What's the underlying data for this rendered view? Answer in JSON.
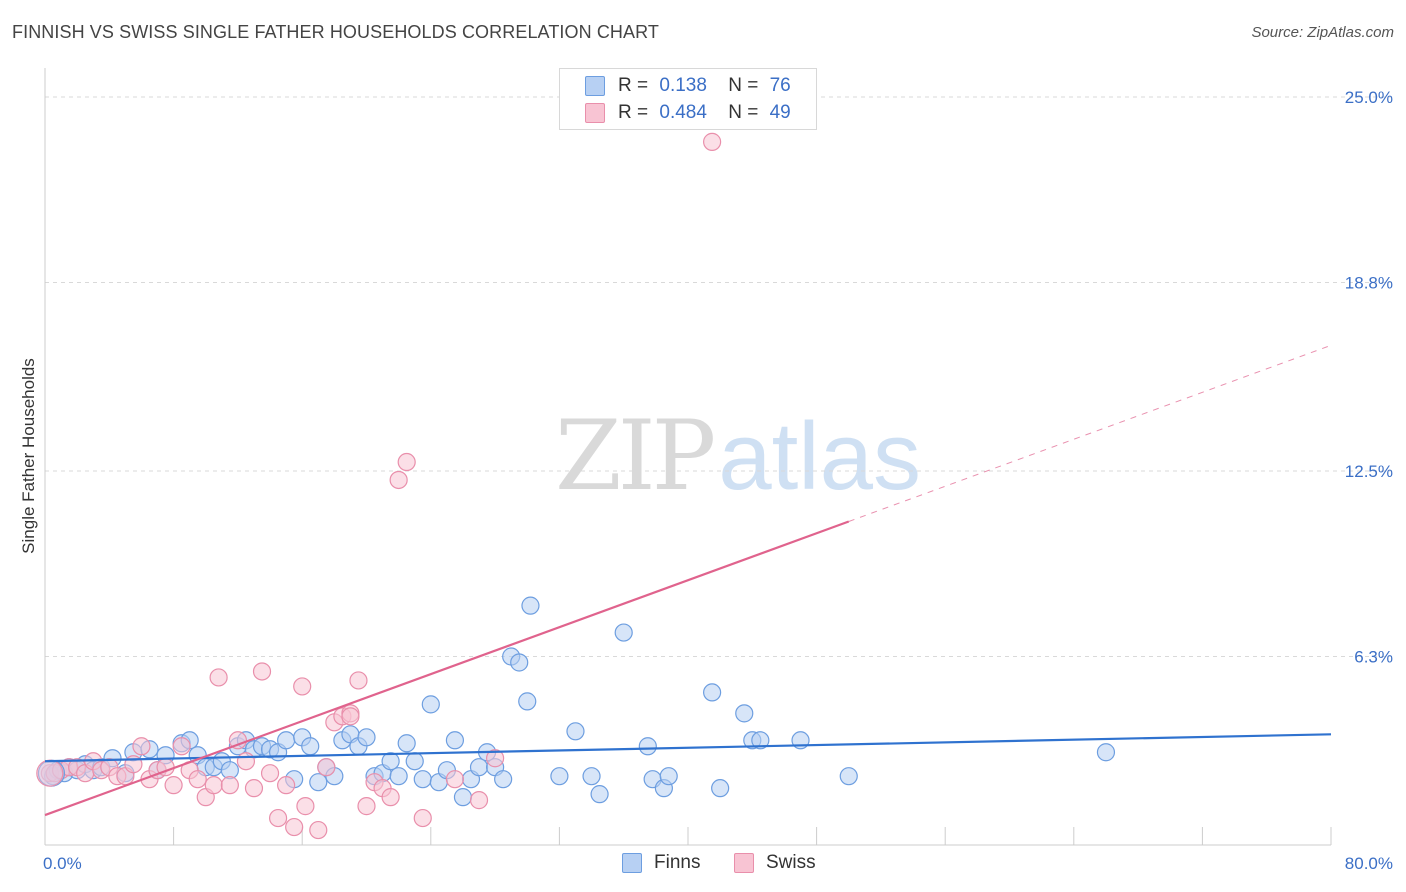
{
  "header": {
    "title": "FINNISH VS SWISS SINGLE FATHER HOUSEHOLDS CORRELATION CHART",
    "source": "Source: ZipAtlas.com"
  },
  "watermark": {
    "zip": "ZIP",
    "atlas": "atlas"
  },
  "legend_top": {
    "rows": [
      {
        "r_label": "R =",
        "r_value": "0.138",
        "n_label": "N =",
        "n_value": "76"
      },
      {
        "r_label": "R =",
        "r_value": "0.484",
        "n_label": "N =",
        "n_value": "49"
      }
    ]
  },
  "legend_bottom": {
    "items": [
      {
        "label": "Finns"
      },
      {
        "label": "Swiss"
      }
    ]
  },
  "colors": {
    "finns_fill": "#b7d0f3",
    "finns_stroke": "#6d9ee0",
    "finns_line": "#2f72cf",
    "swiss_fill": "#f8c4d3",
    "swiss_stroke": "#e98fab",
    "swiss_line": "#e0638d",
    "grid": "#d9d9d9",
    "tick_label": "#3b6fc6"
  },
  "chart_data": {
    "type": "scatter",
    "title": "FINNISH VS SWISS SINGLE FATHER HOUSEHOLDS CORRELATION CHART",
    "xlabel": "",
    "ylabel": "Single Father Households",
    "xlim": [
      0,
      80
    ],
    "ylim": [
      0,
      26
    ],
    "x_tick_labels": [
      {
        "value": 0,
        "label": "0.0%"
      },
      {
        "value": 80,
        "label": "80.0%"
      }
    ],
    "y_ticks": [
      {
        "value": 6.3,
        "label": "6.3%"
      },
      {
        "value": 12.5,
        "label": "12.5%"
      },
      {
        "value": 18.8,
        "label": "18.8%"
      },
      {
        "value": 25.0,
        "label": "25.0%"
      }
    ],
    "grid": true,
    "legend_position": "top-center",
    "series": [
      {
        "name": "Finns",
        "r": 0.138,
        "n": 76,
        "trend": {
          "x": [
            0,
            80
          ],
          "y": [
            2.8,
            3.7
          ],
          "solid_to_x": 80
        },
        "points": [
          [
            0.5,
            2.3
          ],
          [
            0.8,
            2.5
          ],
          [
            1.2,
            2.4
          ],
          [
            1.5,
            2.6
          ],
          [
            2.0,
            2.5
          ],
          [
            2.5,
            2.7
          ],
          [
            3.0,
            2.5
          ],
          [
            3.5,
            2.6
          ],
          [
            4.2,
            2.9
          ],
          [
            5.0,
            2.4
          ],
          [
            5.5,
            3.1
          ],
          [
            6.5,
            3.2
          ],
          [
            7.0,
            2.5
          ],
          [
            7.5,
            3.0
          ],
          [
            8.5,
            3.4
          ],
          [
            9.0,
            3.5
          ],
          [
            9.5,
            3.0
          ],
          [
            10.0,
            2.6
          ],
          [
            10.5,
            2.6
          ],
          [
            11.0,
            2.8
          ],
          [
            11.5,
            2.5
          ],
          [
            12.0,
            3.3
          ],
          [
            12.5,
            3.5
          ],
          [
            13.0,
            3.2
          ],
          [
            13.5,
            3.3
          ],
          [
            14.0,
            3.2
          ],
          [
            14.5,
            3.1
          ],
          [
            15.0,
            3.5
          ],
          [
            15.5,
            2.2
          ],
          [
            16.0,
            3.6
          ],
          [
            16.5,
            3.3
          ],
          [
            17.0,
            2.1
          ],
          [
            17.5,
            2.6
          ],
          [
            18.0,
            2.3
          ],
          [
            18.5,
            3.5
          ],
          [
            19.0,
            3.7
          ],
          [
            19.5,
            3.3
          ],
          [
            20.0,
            3.6
          ],
          [
            20.5,
            2.3
          ],
          [
            21.0,
            2.4
          ],
          [
            21.5,
            2.8
          ],
          [
            22.0,
            2.3
          ],
          [
            22.5,
            3.4
          ],
          [
            23.0,
            2.8
          ],
          [
            23.5,
            2.2
          ],
          [
            24.0,
            4.7
          ],
          [
            24.5,
            2.1
          ],
          [
            25.0,
            2.5
          ],
          [
            25.5,
            3.5
          ],
          [
            26.0,
            1.6
          ],
          [
            26.5,
            2.2
          ],
          [
            27.0,
            2.6
          ],
          [
            27.5,
            3.1
          ],
          [
            28.0,
            2.6
          ],
          [
            28.5,
            2.2
          ],
          [
            29.0,
            6.3
          ],
          [
            29.5,
            6.1
          ],
          [
            30.0,
            4.8
          ],
          [
            30.2,
            8.0
          ],
          [
            32.0,
            2.3
          ],
          [
            33.0,
            3.8
          ],
          [
            34.0,
            2.3
          ],
          [
            34.5,
            1.7
          ],
          [
            36.0,
            7.1
          ],
          [
            37.5,
            3.3
          ],
          [
            37.8,
            2.2
          ],
          [
            38.5,
            1.9
          ],
          [
            38.8,
            2.3
          ],
          [
            41.5,
            5.1
          ],
          [
            42.0,
            1.9
          ],
          [
            43.5,
            4.4
          ],
          [
            44.0,
            3.5
          ],
          [
            44.5,
            3.5
          ],
          [
            47.0,
            3.5
          ],
          [
            50.0,
            2.3
          ],
          [
            66.0,
            3.1
          ]
        ]
      },
      {
        "name": "Swiss",
        "r": 0.484,
        "n": 49,
        "trend": {
          "x": [
            0,
            80
          ],
          "y": [
            1.0,
            16.7
          ],
          "solid_to_x": 50
        },
        "points": [
          [
            0.3,
            2.4
          ],
          [
            0.6,
            2.4
          ],
          [
            1.0,
            2.5
          ],
          [
            1.5,
            2.6
          ],
          [
            2.0,
            2.6
          ],
          [
            2.5,
            2.4
          ],
          [
            3.0,
            2.8
          ],
          [
            3.5,
            2.5
          ],
          [
            4.0,
            2.6
          ],
          [
            4.5,
            2.3
          ],
          [
            5.0,
            2.3
          ],
          [
            5.5,
            2.7
          ],
          [
            6.0,
            3.3
          ],
          [
            6.5,
            2.2
          ],
          [
            7.0,
            2.5
          ],
          [
            7.5,
            2.6
          ],
          [
            8.0,
            2.0
          ],
          [
            8.5,
            3.3
          ],
          [
            9.0,
            2.5
          ],
          [
            9.5,
            2.2
          ],
          [
            10.0,
            1.6
          ],
          [
            10.5,
            2.0
          ],
          [
            10.8,
            5.6
          ],
          [
            11.5,
            2.0
          ],
          [
            12.0,
            3.5
          ],
          [
            12.5,
            2.8
          ],
          [
            13.0,
            1.9
          ],
          [
            13.5,
            5.8
          ],
          [
            14.0,
            2.4
          ],
          [
            14.5,
            0.9
          ],
          [
            15.0,
            2.0
          ],
          [
            15.5,
            0.6
          ],
          [
            16.0,
            5.3
          ],
          [
            16.2,
            1.3
          ],
          [
            17.0,
            0.5
          ],
          [
            17.5,
            2.6
          ],
          [
            18.0,
            4.1
          ],
          [
            18.5,
            4.3
          ],
          [
            19.0,
            4.4
          ],
          [
            19.5,
            5.5
          ],
          [
            20.0,
            1.3
          ],
          [
            20.5,
            2.1
          ],
          [
            21.0,
            1.9
          ],
          [
            21.5,
            1.6
          ],
          [
            22.0,
            12.2
          ],
          [
            22.5,
            12.8
          ],
          [
            23.5,
            0.9
          ],
          [
            25.5,
            2.2
          ],
          [
            27.0,
            1.5
          ]
        ]
      }
    ],
    "outlier_note_free": true,
    "extra_swiss_points": [
      [
        41.5,
        23.5
      ],
      [
        28.0,
        2.9
      ],
      [
        19.0,
        4.3
      ]
    ]
  }
}
